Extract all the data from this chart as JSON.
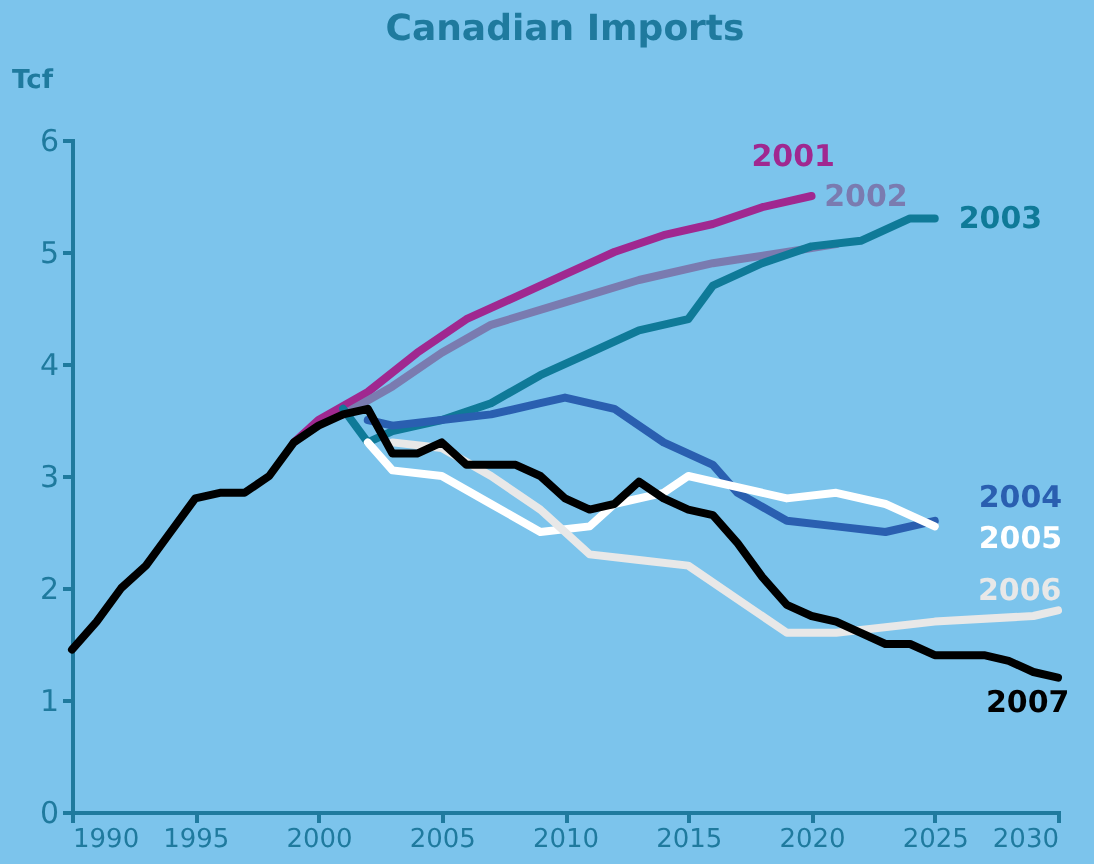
{
  "chart_data": {
    "type": "line",
    "title": "Canadian Imports",
    "ylabel": "Tcf",
    "xlim": [
      1990,
      2030
    ],
    "xticks": [
      1990,
      1995,
      2000,
      2005,
      2010,
      2015,
      2020,
      2025,
      2030
    ],
    "ylim": [
      0,
      6
    ],
    "yticks": [
      0,
      1,
      2,
      3,
      4,
      5,
      6
    ],
    "grid": false,
    "legend": false,
    "line_style": "solid",
    "marker": "none",
    "series": [
      {
        "name": "2001",
        "color": "#a02890",
        "x": [
          1999,
          2000,
          2002,
          2004,
          2006,
          2008,
          2010,
          2012,
          2014,
          2016,
          2018,
          2020
        ],
        "values": [
          3.3,
          3.5,
          3.75,
          4.1,
          4.4,
          4.6,
          4.8,
          5.0,
          5.15,
          5.25,
          5.4,
          5.5
        ]
      },
      {
        "name": "2002",
        "color": "#7a7bb0",
        "x": [
          2001,
          2003,
          2005,
          2007,
          2010,
          2013,
          2016,
          2019,
          2021
        ],
        "values": [
          3.55,
          3.8,
          4.1,
          4.35,
          4.55,
          4.75,
          4.9,
          5.0,
          5.07
        ]
      },
      {
        "name": "2003",
        "color": "#0f7a98",
        "x": [
          2001,
          2002,
          2003,
          2005,
          2007,
          2009,
          2011,
          2013,
          2015,
          2016,
          2018,
          2020,
          2022,
          2024,
          2025
        ],
        "values": [
          3.6,
          3.3,
          3.4,
          3.5,
          3.65,
          3.9,
          4.1,
          4.3,
          4.4,
          4.7,
          4.9,
          5.05,
          5.1,
          5.3,
          5.3
        ]
      },
      {
        "name": "2004",
        "color": "#2a5fb0",
        "x": [
          2002,
          2003,
          2005,
          2007,
          2009,
          2010,
          2012,
          2014,
          2016,
          2017,
          2019,
          2021,
          2023,
          2025
        ],
        "values": [
          3.5,
          3.45,
          3.5,
          3.55,
          3.65,
          3.7,
          3.6,
          3.3,
          3.1,
          2.85,
          2.6,
          2.55,
          2.5,
          2.6
        ]
      },
      {
        "name": "2005",
        "color": "#ffffff",
        "x": [
          2002,
          2003,
          2005,
          2007,
          2009,
          2011,
          2012,
          2014,
          2015,
          2017,
          2019,
          2021,
          2023,
          2025
        ],
        "values": [
          3.3,
          3.05,
          3.0,
          2.75,
          2.5,
          2.55,
          2.75,
          2.85,
          3.0,
          2.9,
          2.8,
          2.85,
          2.75,
          2.55
        ]
      },
      {
        "name": "2006",
        "color": "#e8e8e8",
        "x": [
          2003,
          2005,
          2007,
          2009,
          2011,
          2013,
          2015,
          2017,
          2019,
          2021,
          2025,
          2029,
          2030
        ],
        "values": [
          3.3,
          3.25,
          3.0,
          2.7,
          2.3,
          2.25,
          2.2,
          1.9,
          1.6,
          1.6,
          1.7,
          1.75,
          1.8
        ]
      },
      {
        "name": "2007",
        "color": "#000000",
        "x": [
          1990,
          1991,
          1992,
          1993,
          1994,
          1995,
          1996,
          1997,
          1998,
          1999,
          2000,
          2001,
          2002,
          2003,
          2004,
          2005,
          2006,
          2007,
          2008,
          2009,
          2010,
          2011,
          2012,
          2013,
          2014,
          2015,
          2016,
          2017,
          2018,
          2019,
          2020,
          2021,
          2022,
          2023,
          2024,
          2025,
          2026,
          2027,
          2028,
          2029,
          2030
        ],
        "values": [
          1.45,
          1.7,
          2.0,
          2.2,
          2.5,
          2.8,
          2.85,
          2.85,
          3.0,
          3.3,
          3.45,
          3.55,
          3.6,
          3.2,
          3.2,
          3.3,
          3.1,
          3.1,
          3.1,
          3.0,
          2.8,
          2.7,
          2.75,
          2.95,
          2.8,
          2.7,
          2.65,
          2.4,
          2.1,
          1.85,
          1.75,
          1.7,
          1.6,
          1.5,
          1.5,
          1.4,
          1.4,
          1.4,
          1.35,
          1.25,
          1.2
        ]
      }
    ]
  }
}
